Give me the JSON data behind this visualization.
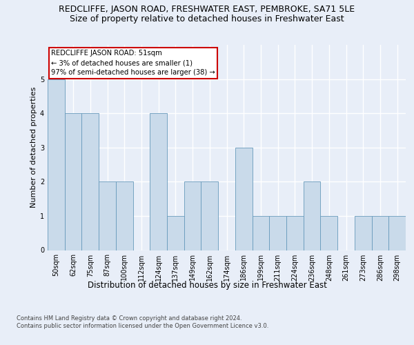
{
  "title": "REDCLIFFE, JASON ROAD, FRESHWATER EAST, PEMBROKE, SA71 5LE",
  "subtitle": "Size of property relative to detached houses in Freshwater East",
  "xlabel": "Distribution of detached houses by size in Freshwater East",
  "ylabel": "Number of detached properties",
  "categories": [
    "50sqm",
    "62sqm",
    "75sqm",
    "87sqm",
    "100sqm",
    "112sqm",
    "124sqm",
    "137sqm",
    "149sqm",
    "162sqm",
    "174sqm",
    "186sqm",
    "199sqm",
    "211sqm",
    "224sqm",
    "236sqm",
    "248sqm",
    "261sqm",
    "273sqm",
    "286sqm",
    "298sqm"
  ],
  "values": [
    5,
    4,
    4,
    2,
    2,
    0,
    4,
    1,
    2,
    2,
    0,
    3,
    1,
    1,
    1,
    2,
    1,
    0,
    1,
    1,
    1
  ],
  "bar_color": "#c9daea",
  "bar_edge_color": "#6699bb",
  "annotation_text": "REDCLIFFE JASON ROAD: 51sqm\n← 3% of detached houses are smaller (1)\n97% of semi-detached houses are larger (38) →",
  "annotation_box_color": "#ffffff",
  "annotation_box_edge": "#cc0000",
  "footer": "Contains HM Land Registry data © Crown copyright and database right 2024.\nContains public sector information licensed under the Open Government Licence v3.0.",
  "ylim": [
    0,
    6
  ],
  "yticks": [
    0,
    1,
    2,
    3,
    4,
    5
  ],
  "bg_color": "#e8eef8",
  "plot_bg": "#e8eef8",
  "grid_color": "#ffffff",
  "title_fontsize": 9,
  "subtitle_fontsize": 9,
  "ylabel_fontsize": 8,
  "xlabel_fontsize": 8.5,
  "tick_fontsize": 7,
  "footer_fontsize": 6
}
